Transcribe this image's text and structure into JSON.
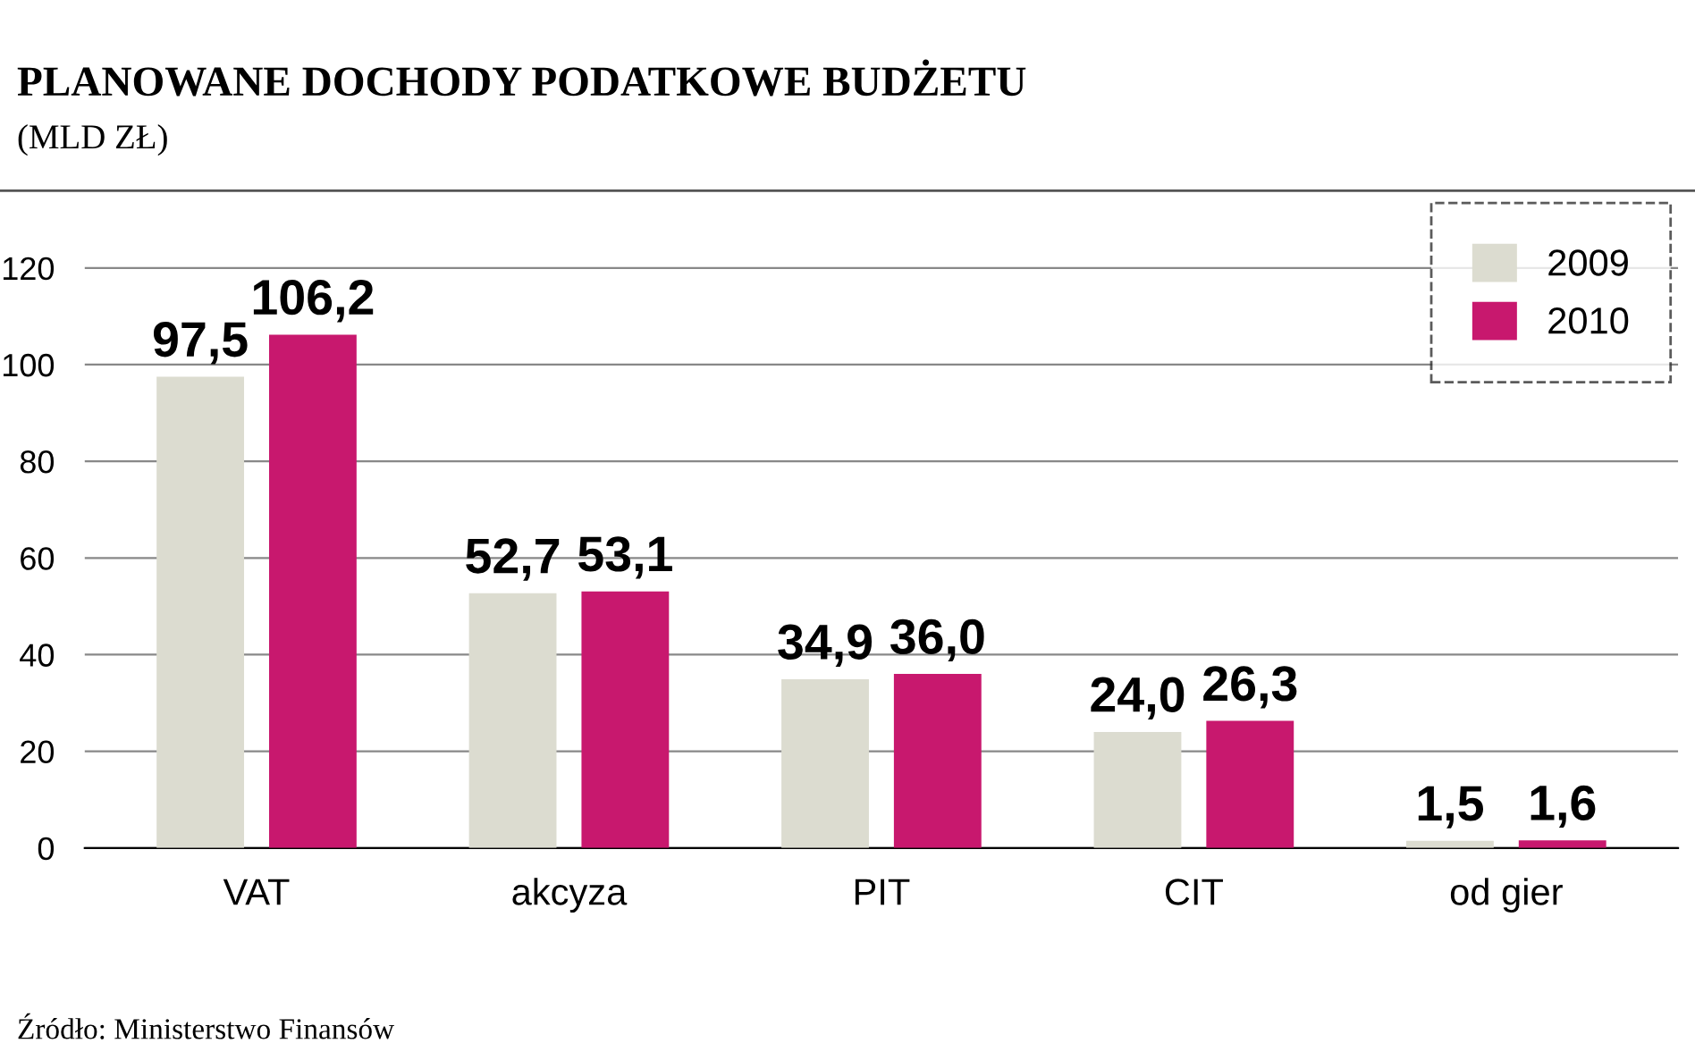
{
  "chart_data": {
    "type": "bar",
    "title": "PLANOWANE DOCHODY PODATKOWE BUDŻETU",
    "subtitle": "(MLD ZŁ)",
    "categories": [
      "VAT",
      "akcyza",
      "PIT",
      "CIT",
      "od gier"
    ],
    "series": [
      {
        "name": "2009",
        "color": "#dcdcd0",
        "values": [
          97.5,
          52.7,
          34.9,
          24.0,
          1.5
        ]
      },
      {
        "name": "2010",
        "color": "#c8186e",
        "values": [
          106.2,
          53.1,
          36.0,
          26.3,
          1.6
        ]
      }
    ],
    "value_labels": [
      [
        "97,5",
        "52,7",
        "34,9",
        "24,0",
        "1,5"
      ],
      [
        "106,2",
        "53,1",
        "36,0",
        "26,3",
        "1,6"
      ]
    ],
    "ylim": [
      0,
      125
    ],
    "yticks": [
      0,
      20,
      40,
      60,
      80,
      100,
      120
    ],
    "grid": "y",
    "legend": "top right",
    "annotations": [
      "Źródło: Ministerstwo Finansów"
    ]
  }
}
